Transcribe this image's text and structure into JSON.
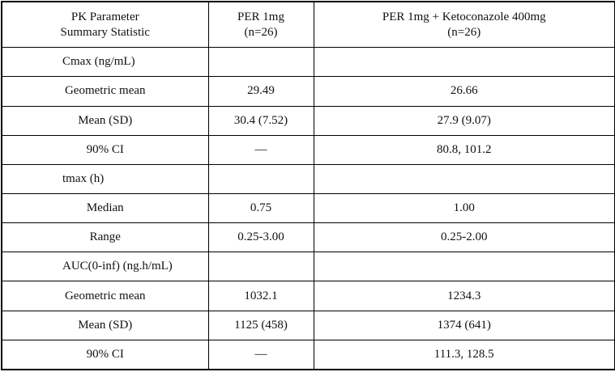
{
  "table": {
    "header": [
      [
        "PK Parameter",
        "Summary Statistic"
      ],
      [
        "PER 1mg",
        "(n=26)"
      ],
      [
        "PER 1mg + Ketoconazole 400mg",
        "(n=26)"
      ]
    ],
    "sections": [
      {
        "title": "Cmax (ng/mL)",
        "rows": [
          [
            "Geometric mean",
            "29.49",
            "26.66"
          ],
          [
            "Mean (SD)",
            "30.4 (7.52)",
            "27.9 (9.07)"
          ],
          [
            "90% CI",
            "—",
            "80.8, 101.2"
          ]
        ]
      },
      {
        "title": "tmax (h)",
        "rows": [
          [
            "Median",
            "0.75",
            "1.00"
          ],
          [
            "Range",
            "0.25-3.00",
            "0.25-2.00"
          ]
        ]
      },
      {
        "title": "AUC(0-inf) (ng.h/mL)",
        "rows": [
          [
            "Geometric mean",
            "1032.1",
            "1234.3"
          ],
          [
            "Mean (SD)",
            "1125 (458)",
            "1374 (641)"
          ],
          [
            "90% CI",
            "—",
            "111.3, 128.5"
          ]
        ]
      }
    ]
  }
}
